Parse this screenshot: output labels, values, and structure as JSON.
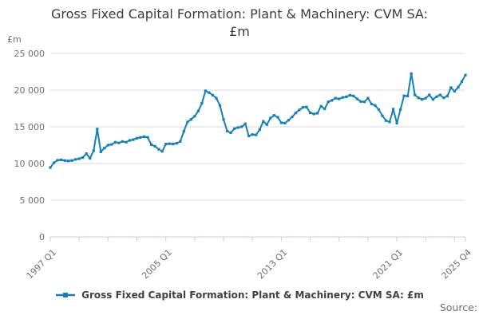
{
  "title_lines": {
    "0": "Gross Fixed Capital Formation: Plant & Machinery: CVM SA:",
    "1": "£m"
  },
  "unit_label": "£m",
  "source_label": "Source:",
  "legend": {
    "label": "Gross Fixed Capital Formation: Plant & Machinery: CVM SA: £m"
  },
  "colors": {
    "line": "#1380be",
    "grid": "#d9d9d9",
    "axis": "#c3d2e4",
    "axis_text": "#707070",
    "title_text": "#3c3c3c",
    "legend_text": "#414042",
    "source_text": "#6e6e6e"
  },
  "chart_data": {
    "type": "line",
    "title": "Gross Fixed Capital Formation: Plant & Machinery: CVM SA: £m",
    "xlabel": "",
    "ylabel": "£m",
    "ylim": [
      0,
      25000
    ],
    "ytick_step": 5000,
    "ytick_labels": [
      "0",
      "5 000",
      "10 000",
      "15 000",
      "20 000",
      "25 000"
    ],
    "grid": "horizontal",
    "legend_position": "bottom",
    "marker": "square",
    "frequency": "quarterly",
    "x_start": "1997 Q1",
    "x_end": "2025 Q4",
    "tick_quarters": [
      0,
      8,
      16,
      24,
      32,
      40,
      48,
      56,
      64,
      72,
      80,
      88,
      96,
      104,
      112,
      115
    ],
    "xticks": [
      {
        "label": "1997 Q1",
        "q": 0
      },
      {
        "label": "2005 Q1",
        "q": 32
      },
      {
        "label": "2013 Q1",
        "q": 64
      },
      {
        "label": "2021 Q1",
        "q": 96
      },
      {
        "label": "2025 Q4",
        "q": 115
      }
    ],
    "values": [
      9450,
      10100,
      10450,
      10500,
      10400,
      10350,
      10400,
      10550,
      10650,
      10800,
      11350,
      10700,
      11750,
      14700,
      11600,
      12100,
      12500,
      12600,
      12900,
      12800,
      13000,
      12900,
      13150,
      13250,
      13450,
      13550,
      13650,
      13550,
      12550,
      12350,
      11950,
      11650,
      12650,
      12700,
      12650,
      12750,
      13000,
      14400,
      15650,
      16000,
      16450,
      17150,
      18200,
      19900,
      19650,
      19300,
      18900,
      17900,
      16000,
      14400,
      14200,
      14750,
      14900,
      15000,
      15400,
      13750,
      13950,
      13900,
      14600,
      15750,
      15300,
      16200,
      16550,
      16300,
      15550,
      15500,
      15900,
      16350,
      16900,
      17300,
      17650,
      17700,
      16900,
      16750,
      16850,
      17800,
      17450,
      18400,
      18600,
      18900,
      18800,
      19000,
      19100,
      19300,
      19200,
      18800,
      18450,
      18400,
      18900,
      18100,
      17900,
      17350,
      16500,
      15850,
      15650,
      17400,
      15500,
      17350,
      19230,
      19200,
      22250,
      19350,
      18950,
      18730,
      18900,
      19350,
      18730,
      19100,
      19350,
      18950,
      19200,
      20350,
      19850,
      20400,
      21150,
      22050
    ]
  }
}
